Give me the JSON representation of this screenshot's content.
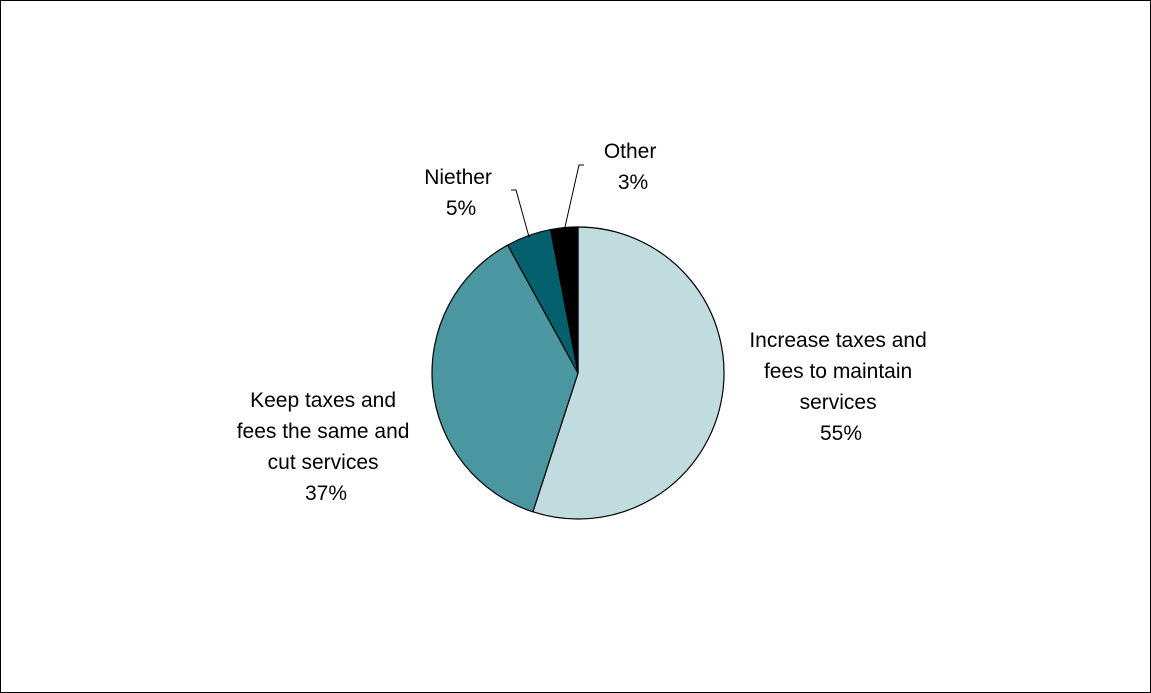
{
  "chart_data": {
    "type": "pie",
    "title": "",
    "start_angle_deg": 0,
    "direction": "clockwise",
    "legend": "none",
    "slices": [
      {
        "label_lines": [
          "Increase taxes and",
          "fees to maintain",
          "services"
        ],
        "value": 55,
        "value_label": "55%",
        "color": "#c0dcdf"
      },
      {
        "label_lines": [
          "Keep taxes and",
          "fees the same and",
          "cut services"
        ],
        "value": 37,
        "value_label": "37%",
        "color": "#4a97a1"
      },
      {
        "label_lines": [
          "Niether"
        ],
        "value": 5,
        "value_label": "5%",
        "color": "#05606e"
      },
      {
        "label_lines": [
          "Other"
        ],
        "value": 3,
        "value_label": "3%",
        "color": "#000000"
      }
    ]
  }
}
